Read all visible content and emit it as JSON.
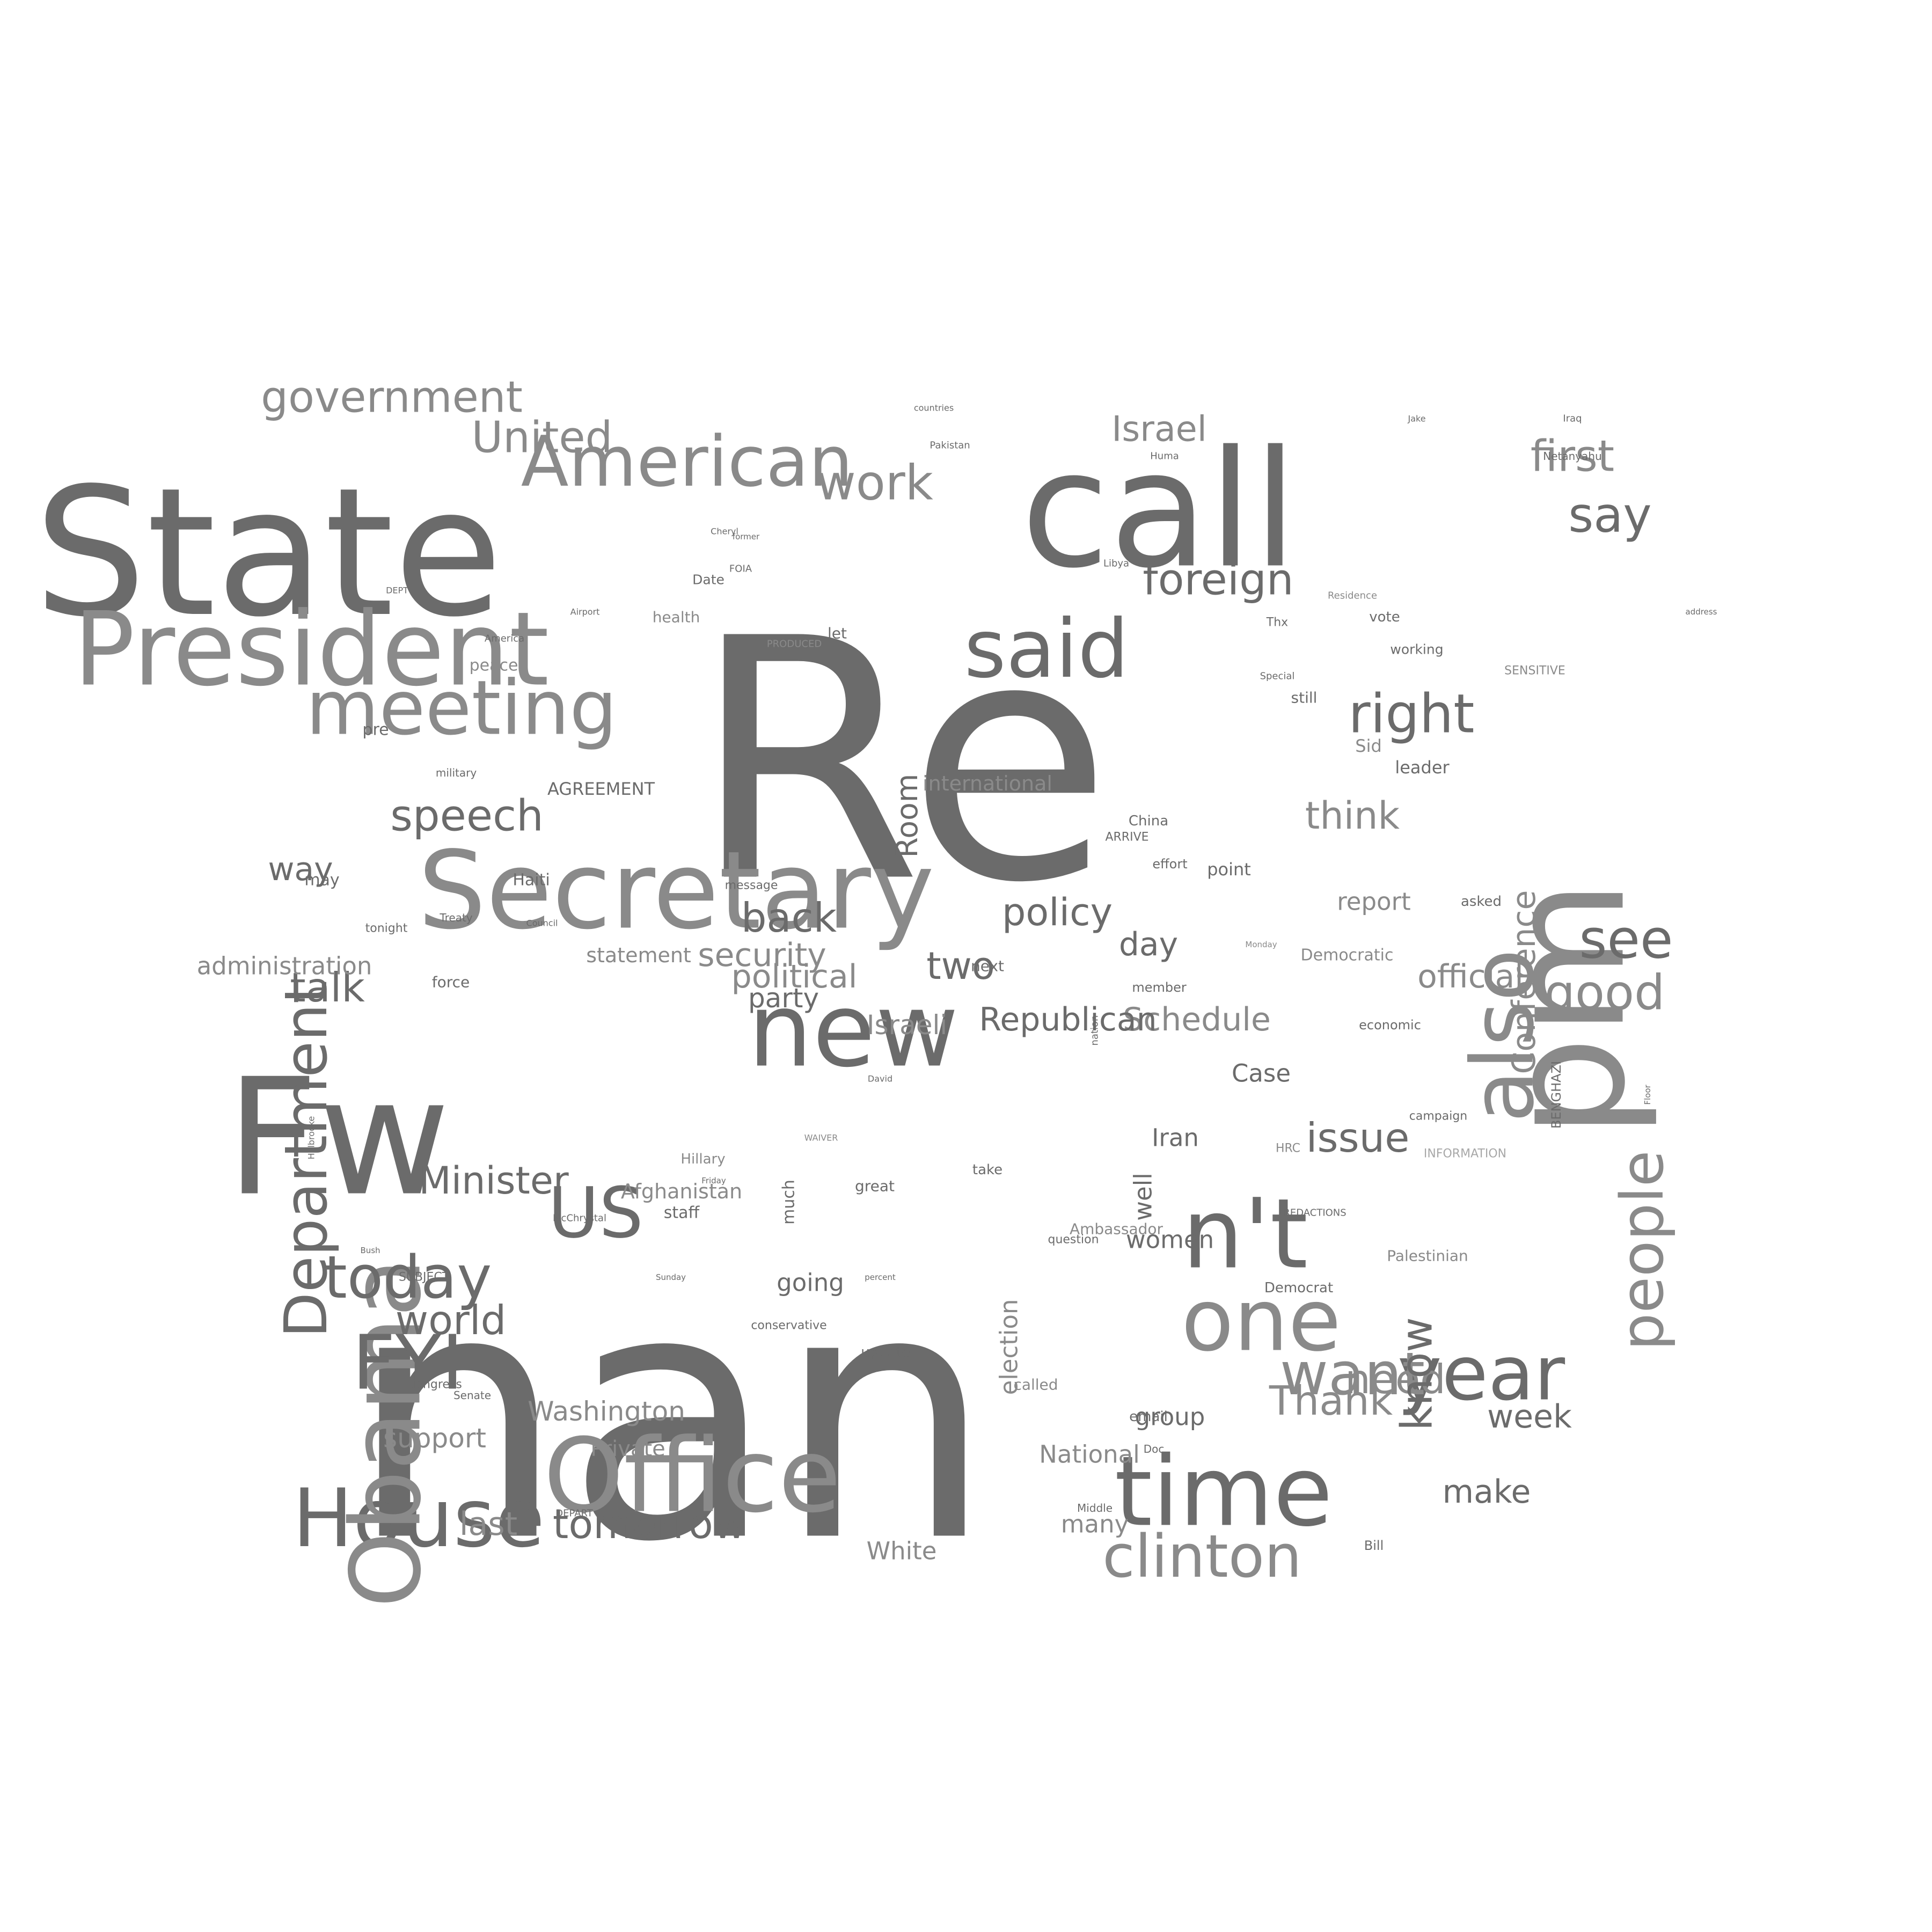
{
  "colors": {
    "background": "#ffffff",
    "dark": "#6b6b6b",
    "mid": "#8a8a8a",
    "light": "#a8a8a8"
  },
  "words": [
    {
      "text": "Re",
      "weight": 1.0,
      "shade": "dark"
    },
    {
      "text": "nan",
      "weight": 0.95,
      "shade": "dark"
    },
    {
      "text": "State",
      "weight": 0.62,
      "shade": "dark"
    },
    {
      "text": "call",
      "weight": 0.58,
      "shade": "dark"
    },
    {
      "text": "pm",
      "weight": 0.55,
      "shade": "mid"
    },
    {
      "text": "Fw",
      "weight": 0.55,
      "shade": "dark"
    },
    {
      "text": "Secretary",
      "weight": 0.42,
      "shade": "mid"
    },
    {
      "text": "President",
      "weight": 0.4,
      "shade": "mid"
    },
    {
      "text": "Office",
      "weight": 0.38,
      "shade": "mid"
    },
    {
      "text": "time",
      "weight": 0.38,
      "shade": "dark"
    },
    {
      "text": "new",
      "weight": 0.38,
      "shade": "dark"
    },
    {
      "text": "n't",
      "weight": 0.36,
      "shade": "dark"
    },
    {
      "text": "House",
      "weight": 0.34,
      "shade": "dark"
    },
    {
      "text": "Obama",
      "weight": 0.34,
      "shade": "mid"
    },
    {
      "text": "one",
      "weight": 0.33,
      "shade": "mid"
    },
    {
      "text": "also",
      "weight": 0.33,
      "shade": "mid"
    },
    {
      "text": "said",
      "weight": 0.32,
      "shade": "dark"
    },
    {
      "text": "US",
      "weight": 0.3,
      "shade": "dark"
    },
    {
      "text": "FYI",
      "weight": 0.3,
      "shade": "dark"
    },
    {
      "text": "meeting",
      "weight": 0.3,
      "shade": "mid"
    },
    {
      "text": "American",
      "weight": 0.28,
      "shade": "mid"
    },
    {
      "text": "Department",
      "weight": 0.27,
      "shade": "dark"
    },
    {
      "text": "year",
      "weight": 0.26,
      "shade": "dark"
    },
    {
      "text": "clinton",
      "weight": 0.24,
      "shade": "mid"
    },
    {
      "text": "people",
      "weight": 0.24,
      "shade": "mid"
    },
    {
      "text": "today",
      "weight": 0.23,
      "shade": "dark"
    },
    {
      "text": "right",
      "weight": 0.22,
      "shade": "dark"
    },
    {
      "text": "want",
      "weight": 0.22,
      "shade": "mid"
    },
    {
      "text": "government",
      "weight": 0.2,
      "shade": "mid"
    },
    {
      "text": "work",
      "weight": 0.2,
      "shade": "mid"
    },
    {
      "text": "foreign",
      "weight": 0.2,
      "shade": "dark"
    },
    {
      "text": "see",
      "weight": 0.2,
      "shade": "dark"
    },
    {
      "text": "say",
      "weight": 0.19,
      "shade": "dark"
    },
    {
      "text": "first",
      "weight": 0.19,
      "shade": "mid"
    },
    {
      "text": "Israel",
      "weight": 0.18,
      "shade": "mid"
    },
    {
      "text": "United",
      "weight": 0.18,
      "shade": "mid"
    },
    {
      "text": "speech",
      "weight": 0.18,
      "shade": "dark"
    },
    {
      "text": "think",
      "weight": 0.18,
      "shade": "mid"
    },
    {
      "text": "tomorrow",
      "weight": 0.18,
      "shade": "dark"
    },
    {
      "text": "back",
      "weight": 0.18,
      "shade": "dark"
    },
    {
      "text": "policy",
      "weight": 0.18,
      "shade": "dark"
    },
    {
      "text": "good",
      "weight": 0.18,
      "shade": "mid"
    },
    {
      "text": "issue",
      "weight": 0.17,
      "shade": "dark"
    },
    {
      "text": "Minister",
      "weight": 0.17,
      "shade": "dark"
    },
    {
      "text": "world",
      "weight": 0.17,
      "shade": "dark"
    },
    {
      "text": "talk",
      "weight": 0.17,
      "shade": "dark"
    },
    {
      "text": "two",
      "weight": 0.17,
      "shade": "dark"
    },
    {
      "text": "need",
      "weight": 0.17,
      "shade": "mid"
    },
    {
      "text": "know",
      "weight": 0.17,
      "shade": "dark"
    },
    {
      "text": "Thank",
      "weight": 0.16,
      "shade": "mid"
    },
    {
      "text": "last",
      "weight": 0.16,
      "shade": "mid"
    },
    {
      "text": "week",
      "weight": 0.16,
      "shade": "dark"
    },
    {
      "text": "way",
      "weight": 0.16,
      "shade": "dark"
    },
    {
      "text": "day",
      "weight": 0.16,
      "shade": "dark"
    },
    {
      "text": "security",
      "weight": 0.15,
      "shade": "mid"
    },
    {
      "text": "make",
      "weight": 0.15,
      "shade": "dark"
    },
    {
      "text": "Room",
      "weight": 0.15,
      "shade": "dark"
    },
    {
      "text": "political",
      "weight": 0.14,
      "shade": "mid"
    },
    {
      "text": "Schedule",
      "weight": 0.14,
      "shade": "mid"
    },
    {
      "text": "Republican",
      "weight": 0.13,
      "shade": "dark"
    },
    {
      "text": "Conference",
      "weight": 0.13,
      "shade": "mid"
    },
    {
      "text": "official",
      "weight": 0.13,
      "shade": "mid"
    },
    {
      "text": "Israeli",
      "weight": 0.12,
      "shade": "mid"
    },
    {
      "text": "support",
      "weight": 0.12,
      "shade": "mid"
    },
    {
      "text": "party",
      "weight": 0.12,
      "shade": "dark"
    },
    {
      "text": "Washington",
      "weight": 0.12,
      "shade": "mid"
    },
    {
      "text": "many",
      "weight": 0.12,
      "shade": "mid"
    },
    {
      "text": "group",
      "weight": 0.12,
      "shade": "dark"
    },
    {
      "text": "White",
      "weight": 0.12,
      "shade": "mid"
    },
    {
      "text": "well",
      "weight": 0.12,
      "shade": "dark"
    },
    {
      "text": "Case",
      "weight": 0.12,
      "shade": "dark"
    },
    {
      "text": "report",
      "weight": 0.12,
      "shade": "mid"
    },
    {
      "text": "election",
      "weight": 0.11,
      "shade": "mid"
    },
    {
      "text": "National",
      "weight": 0.11,
      "shade": "mid"
    },
    {
      "text": "Iran",
      "weight": 0.11,
      "shade": "dark"
    },
    {
      "text": "women",
      "weight": 0.11,
      "shade": "dark"
    },
    {
      "text": "administration",
      "weight": 0.11,
      "shade": "mid"
    },
    {
      "text": "going",
      "weight": 0.11,
      "shade": "dark"
    },
    {
      "text": "international",
      "weight": 0.1,
      "shade": "mid"
    },
    {
      "text": "Private",
      "weight": 0.1,
      "shade": "mid"
    },
    {
      "text": "statement",
      "weight": 0.1,
      "shade": "mid"
    },
    {
      "text": "Afghanistan",
      "weight": 0.1,
      "shade": "mid"
    },
    {
      "text": "Haiti",
      "weight": 0.1,
      "shade": "dark"
    },
    {
      "text": "AGREEMENT",
      "weight": 0.1,
      "shade": "dark"
    },
    {
      "text": "Sid",
      "weight": 0.1,
      "shade": "mid"
    },
    {
      "text": "point",
      "weight": 0.1,
      "shade": "dark"
    },
    {
      "text": "peace",
      "weight": 0.1,
      "shade": "mid"
    },
    {
      "text": "still",
      "weight": 0.1,
      "shade": "dark"
    },
    {
      "text": "take",
      "weight": 0.1,
      "shade": "dark"
    },
    {
      "text": "may",
      "weight": 0.1,
      "shade": "dark"
    },
    {
      "text": "pre",
      "weight": 0.1,
      "shade": "dark"
    },
    {
      "text": "let",
      "weight": 0.1,
      "shade": "dark"
    },
    {
      "text": "staff",
      "weight": 0.1,
      "shade": "dark"
    },
    {
      "text": "leader",
      "weight": 0.1,
      "shade": "dark"
    },
    {
      "text": "much",
      "weight": 0.1,
      "shade": "dark"
    },
    {
      "text": "called",
      "weight": 0.1,
      "shade": "mid"
    },
    {
      "text": "force",
      "weight": 0.1,
      "shade": "dark"
    },
    {
      "text": "health",
      "weight": 0.1,
      "shade": "mid"
    },
    {
      "text": "Palestinian",
      "weight": 0.09,
      "shade": "mid"
    },
    {
      "text": "Democratic",
      "weight": 0.09,
      "shade": "mid"
    },
    {
      "text": "Ambassador",
      "weight": 0.09,
      "shade": "mid"
    },
    {
      "text": "great",
      "weight": 0.09,
      "shade": "dark"
    },
    {
      "text": "next",
      "weight": 0.09,
      "shade": "dark"
    },
    {
      "text": "email",
      "weight": 0.09,
      "shade": "dark"
    },
    {
      "text": "Hillary",
      "weight": 0.09,
      "shade": "mid"
    },
    {
      "text": "update",
      "weight": 0.09,
      "shade": "dark"
    },
    {
      "text": "Date",
      "weight": 0.09,
      "shade": "dark"
    },
    {
      "text": "Democrat",
      "weight": 0.09,
      "shade": "dark"
    },
    {
      "text": "working",
      "weight": 0.09,
      "shade": "dark"
    },
    {
      "text": "China",
      "weight": 0.09,
      "shade": "dark"
    },
    {
      "text": "asked",
      "weight": 0.09,
      "shade": "dark"
    },
    {
      "text": "vote",
      "weight": 0.09,
      "shade": "dark"
    },
    {
      "text": "Bill",
      "weight": 0.09,
      "shade": "dark"
    },
    {
      "text": "economic",
      "weight": 0.09,
      "shade": "dark"
    },
    {
      "text": "BENGHAZI",
      "weight": 0.08,
      "shade": "dark"
    },
    {
      "text": "SENSITIVE",
      "weight": 0.08,
      "shade": "mid"
    },
    {
      "text": "INFORMATION",
      "weight": 0.08,
      "shade": "light"
    },
    {
      "text": "question",
      "weight": 0.08,
      "shade": "dark"
    },
    {
      "text": "member",
      "weight": 0.08,
      "shade": "dark"
    },
    {
      "text": "effort",
      "weight": 0.08,
      "shade": "dark"
    },
    {
      "text": "Thx",
      "weight": 0.08,
      "shade": "dark"
    },
    {
      "text": "message",
      "weight": 0.08,
      "shade": "dark"
    },
    {
      "text": "campaign",
      "weight": 0.08,
      "shade": "dark"
    },
    {
      "text": "tonight",
      "weight": 0.08,
      "shade": "dark"
    },
    {
      "text": "SUBJECT",
      "weight": 0.08,
      "shade": "dark"
    },
    {
      "text": "Congress",
      "weight": 0.08,
      "shade": "dark"
    },
    {
      "text": "conservative",
      "weight": 0.08,
      "shade": "dark"
    },
    {
      "text": "military",
      "weight": 0.08,
      "shade": "dark"
    },
    {
      "text": "ARRIVE",
      "weight": 0.08,
      "shade": "dark"
    },
    {
      "text": "HRC",
      "weight": 0.08,
      "shade": "mid"
    },
    {
      "text": "Netanyahu",
      "weight": 0.07,
      "shade": "dark"
    },
    {
      "text": "Middle",
      "weight": 0.07,
      "shade": "dark"
    },
    {
      "text": "Treaty",
      "weight": 0.07,
      "shade": "dark"
    },
    {
      "text": "Senate",
      "weight": 0.07,
      "shade": "dark"
    },
    {
      "text": "America",
      "weight": 0.07,
      "shade": "dark"
    },
    {
      "text": "PRODUCED",
      "weight": 0.07,
      "shade": "mid"
    },
    {
      "text": "Residence",
      "weight": 0.07,
      "shade": "mid"
    },
    {
      "text": "nation",
      "weight": 0.07,
      "shade": "dark"
    },
    {
      "text": "McChrystal",
      "weight": 0.07,
      "shade": "dark"
    },
    {
      "text": "Pakistan",
      "weight": 0.07,
      "shade": "dark"
    },
    {
      "text": "Huma",
      "weight": 0.06,
      "shade": "dark"
    },
    {
      "text": "Jake",
      "weight": 0.06,
      "shade": "dark"
    },
    {
      "text": "Iraq",
      "weight": 0.06,
      "shade": "dark"
    },
    {
      "text": "Libya",
      "weight": 0.06,
      "shade": "dark"
    },
    {
      "text": "Cheryl",
      "weight": 0.06,
      "shade": "dark"
    },
    {
      "text": "Doc",
      "weight": 0.06,
      "shade": "dark"
    },
    {
      "text": "Special",
      "weight": 0.06,
      "shade": "dark"
    },
    {
      "text": "countries",
      "weight": 0.06,
      "shade": "dark"
    },
    {
      "text": "REDACTIONS",
      "weight": 0.06,
      "shade": "dark"
    },
    {
      "text": "FOIA",
      "weight": 0.06,
      "shade": "dark"
    },
    {
      "text": "WAIVER",
      "weight": 0.06,
      "shade": "mid"
    },
    {
      "text": "DEPART",
      "weight": 0.06,
      "shade": "dark"
    },
    {
      "text": "DEPT",
      "weight": 0.06,
      "shade": "dark"
    },
    {
      "text": "Holbrooke",
      "weight": 0.06,
      "shade": "dark"
    },
    {
      "text": "David",
      "weight": 0.06,
      "shade": "dark"
    },
    {
      "text": "Airport",
      "weight": 0.06,
      "shade": "dark"
    },
    {
      "text": "Council",
      "weight": 0.06,
      "shade": "dark"
    },
    {
      "text": "Monday",
      "weight": 0.06,
      "shade": "mid"
    },
    {
      "text": "Sunday",
      "weight": 0.06,
      "shade": "dark"
    },
    {
      "text": "Friday",
      "weight": 0.06,
      "shade": "dark"
    },
    {
      "text": "Bush",
      "weight": 0.06,
      "shade": "dark"
    },
    {
      "text": "percent",
      "weight": 0.06,
      "shade": "dark"
    },
    {
      "text": "Floor",
      "weight": 0.06,
      "shade": "dark"
    },
    {
      "text": "former",
      "weight": 0.06,
      "shade": "dark"
    },
    {
      "text": "address",
      "weight": 0.06,
      "shade": "dark"
    }
  ]
}
